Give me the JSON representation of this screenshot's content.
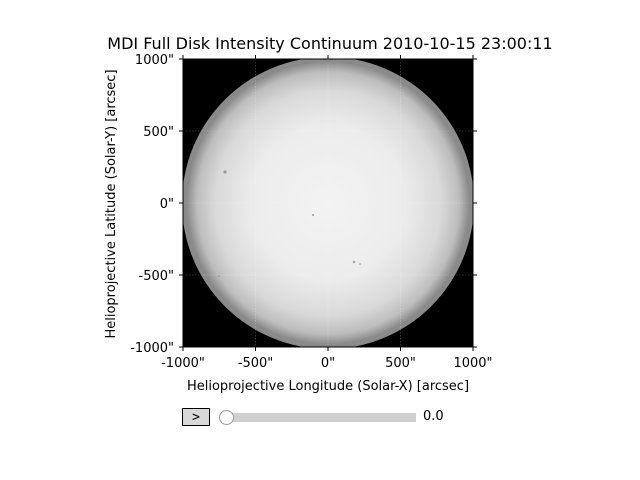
{
  "figure": {
    "title": "MDI Full Disk Intensity Continuum 2010-10-15 23:00:11",
    "xlabel": "Helioprojective Longitude (Solar-X) [arcsec]",
    "ylabel": "Helioprojective Latitude (Solar-Y) [arcsec]"
  },
  "chart_data": {
    "type": "heatmap",
    "title": "MDI Full Disk Intensity Continuum 2010-10-15 23:00:11",
    "xlabel": "Helioprojective Longitude (Solar-X) [arcsec]",
    "ylabel": "Helioprojective Latitude (Solar-Y) [arcsec]",
    "xlim": [
      -1000,
      1000
    ],
    "ylim": [
      -1000,
      1000
    ],
    "xticks": [
      -1000,
      -500,
      0,
      500,
      1000
    ],
    "xtick_labels": [
      "-1000\"",
      "-500\"",
      "0\"",
      "500\"",
      "1000\""
    ],
    "yticks": [
      1000,
      500,
      0,
      -500,
      -1000
    ],
    "ytick_labels": [
      "1000\"",
      "500\"",
      "0\"",
      "-500\"",
      "-1000\""
    ],
    "grid": true,
    "colormap": "gray",
    "disk_radius_arcsec": 990,
    "colors": {
      "background": "#000000",
      "disk_center": "#f2f2f2",
      "disk_limb": "#8a8a8a"
    }
  },
  "controls": {
    "play_label": ">",
    "slider_value": "0.0",
    "slider_fraction": 0
  }
}
